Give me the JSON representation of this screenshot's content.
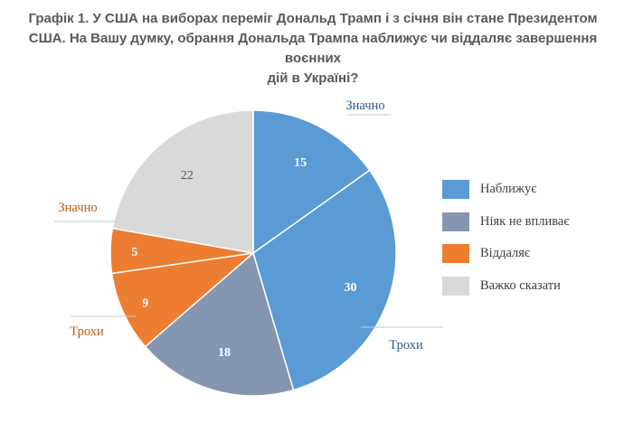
{
  "title_lines": [
    "Графік 1. У США на виборах переміг Дональд Трамп і з січня він стане Президентом",
    "США. На Вашу думку, обрання Дональда Трампа наближує чи віддаляє завершення воєнних",
    "дій в Україні?"
  ],
  "chart_data": {
    "type": "pie",
    "categories": [
      "Наближує",
      "Ніяк не впливає",
      "Віддаляє",
      "Важко сказати"
    ],
    "slices": [
      {
        "label": "Значно",
        "value": 15,
        "category": "Наближує",
        "color": "#5B9BD5"
      },
      {
        "label": "Трохи",
        "value": 30,
        "category": "Наближує",
        "color": "#5B9BD5"
      },
      {
        "label": "",
        "value": 18,
        "category": "Ніяк не впливає",
        "color": "#8496B0"
      },
      {
        "label": "Трохи",
        "value": 9,
        "category": "Віддаляє",
        "color": "#ED7D31"
      },
      {
        "label": "Значно",
        "value": 5,
        "category": "Віддаляє",
        "color": "#ED7D31"
      },
      {
        "label": "",
        "value": 22,
        "category": "Важко сказати",
        "color": "#D9D9D9"
      }
    ],
    "legend_position": "right"
  },
  "legend": [
    {
      "label": "Наближує",
      "color": "#5B9BD5"
    },
    {
      "label": "Ніяк не впливає",
      "color": "#8496B0"
    },
    {
      "label": "Віддаляє",
      "color": "#ED7D31"
    },
    {
      "label": "Важко сказати",
      "color": "#D9D9D9"
    }
  ],
  "colors": {
    "near_label": "#2E5D8C",
    "far_label": "#C55A11",
    "dark_value": "#595959",
    "light_value": "#ffffff"
  }
}
